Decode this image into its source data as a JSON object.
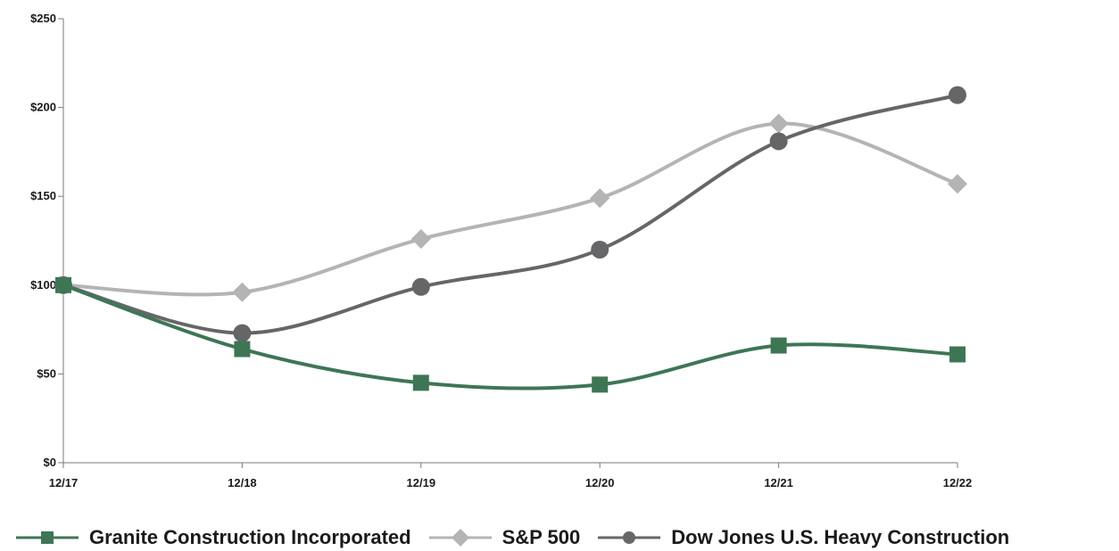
{
  "chart_data": {
    "type": "line",
    "title": "",
    "xlabel": "",
    "ylabel": "",
    "categories": [
      "12/17",
      "12/18",
      "12/19",
      "12/20",
      "12/21",
      "12/22"
    ],
    "y_ticks": [
      0,
      50,
      100,
      150,
      200,
      250
    ],
    "y_tick_labels": [
      "$0",
      "$50",
      "$100",
      "$150",
      "$200",
      "$250"
    ],
    "ylim": [
      0,
      250
    ],
    "grid": false,
    "legend_position": "bottom",
    "series": [
      {
        "name": "Granite Construction Incorporated",
        "values": [
          100,
          64,
          45,
          44,
          66,
          61
        ],
        "color": "#3e7655",
        "marker": "square"
      },
      {
        "name": "S&P 500",
        "values": [
          100,
          96,
          126,
          149,
          191,
          157
        ],
        "color": "#b4b4b4",
        "marker": "diamond"
      },
      {
        "name": "Dow Jones U.S. Heavy Construction",
        "values": [
          100,
          73,
          99,
          120,
          181,
          207
        ],
        "color": "#666669",
        "marker": "circle"
      }
    ]
  }
}
